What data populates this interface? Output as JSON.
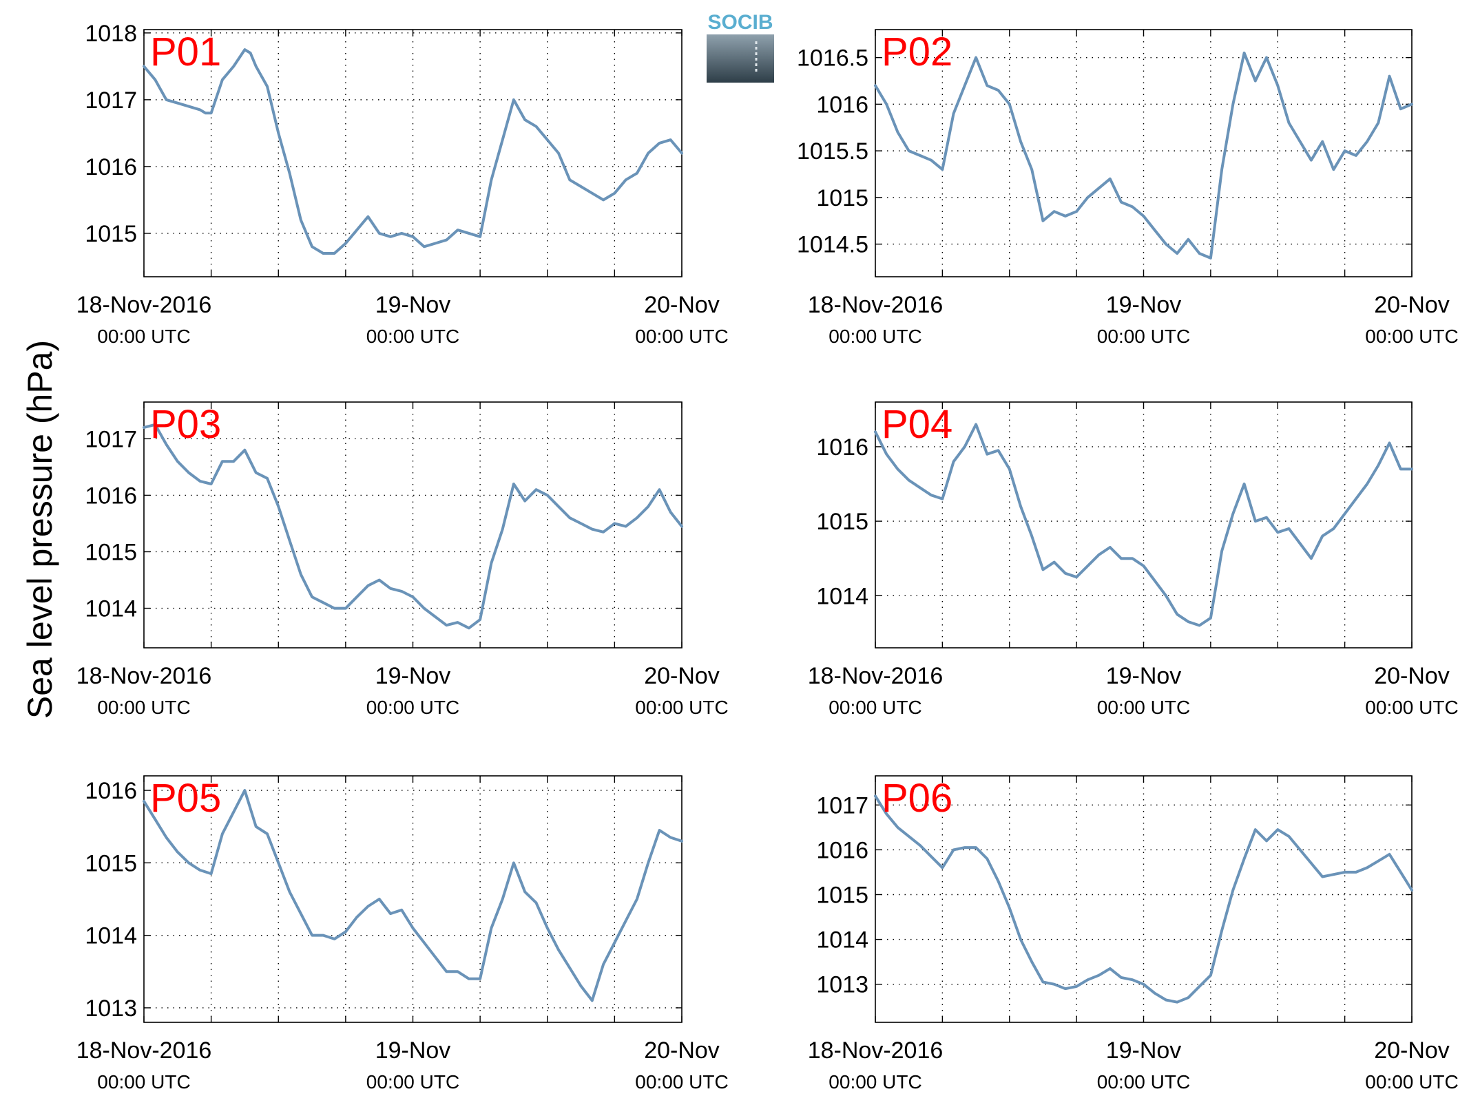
{
  "figure": {
    "ylabel": "Sea level pressure (hPa)",
    "logo_text": "SOCIB",
    "line_color": "#6a93b8",
    "panel_label_color": "#ff0000",
    "x_ticks": [
      {
        "label": "18-Nov-2016",
        "sub": "00:00 UTC",
        "hours": 0
      },
      {
        "label": "19-Nov",
        "sub": "00:00 UTC",
        "hours": 24
      },
      {
        "label": "20-Nov",
        "sub": "00:00 UTC",
        "hours": 48
      }
    ],
    "x_grid_hours": [
      0,
      6,
      12,
      18,
      24,
      30,
      36,
      42,
      48
    ]
  },
  "chart_data": [
    {
      "type": "line",
      "title": "P01",
      "xlabel": "",
      "ylabel": "Sea level pressure (hPa)",
      "x_unit": "hours since 18-Nov-2016 00:00 UTC",
      "xlim": [
        0,
        48
      ],
      "ylim": [
        1014.35,
        1018.05
      ],
      "yticks": [
        1015,
        1016,
        1017,
        1018
      ],
      "grid": true,
      "series": [
        {
          "x": [
            0,
            1,
            2,
            3,
            4,
            5,
            5.5,
            6,
            7,
            8,
            9,
            9.5,
            10,
            11,
            12,
            13,
            14,
            15,
            16,
            17,
            18,
            19,
            20,
            21,
            22,
            23,
            24,
            25,
            26,
            27,
            28,
            29,
            30,
            31,
            32,
            33,
            34,
            35,
            36,
            37,
            38,
            39,
            40,
            41,
            42,
            43,
            44,
            45,
            46,
            47,
            48
          ],
          "values": [
            1017.5,
            1017.3,
            1017.0,
            1016.95,
            1016.9,
            1016.85,
            1016.8,
            1016.8,
            1017.3,
            1017.5,
            1017.75,
            1017.7,
            1017.5,
            1017.2,
            1016.5,
            1015.9,
            1015.2,
            1014.8,
            1014.7,
            1014.7,
            1014.85,
            1015.05,
            1015.25,
            1015.0,
            1014.95,
            1015.0,
            1014.95,
            1014.8,
            1014.85,
            1014.9,
            1015.05,
            1015.0,
            1014.95,
            1015.8,
            1016.4,
            1017.0,
            1016.7,
            1016.6,
            1016.4,
            1016.2,
            1015.8,
            1015.7,
            1015.6,
            1015.5,
            1015.6,
            1015.8,
            1015.9,
            1016.2,
            1016.35,
            1016.4,
            1016.2
          ]
        }
      ]
    },
    {
      "type": "line",
      "title": "P02",
      "xlabel": "",
      "ylabel": "Sea level pressure (hPa)",
      "x_unit": "hours since 18-Nov-2016 00:00 UTC",
      "xlim": [
        0,
        48
      ],
      "ylim": [
        1014.15,
        1016.8
      ],
      "yticks": [
        1014.5,
        1015,
        1015.5,
        1016,
        1016.5
      ],
      "grid": true,
      "series": [
        {
          "x": [
            0,
            1,
            2,
            3,
            4,
            5,
            6,
            7,
            8,
            9,
            10,
            11,
            12,
            13,
            14,
            15,
            16,
            17,
            18,
            19,
            20,
            21,
            22,
            23,
            24,
            25,
            26,
            27,
            28,
            29,
            30,
            31,
            32,
            33,
            34,
            35,
            36,
            37,
            38,
            39,
            40,
            41,
            42,
            43,
            44,
            45,
            46,
            47,
            48
          ],
          "values": [
            1016.2,
            1016.0,
            1015.7,
            1015.5,
            1015.45,
            1015.4,
            1015.3,
            1015.9,
            1016.2,
            1016.5,
            1016.2,
            1016.15,
            1016.0,
            1015.6,
            1015.3,
            1014.75,
            1014.85,
            1014.8,
            1014.85,
            1015.0,
            1015.1,
            1015.2,
            1014.95,
            1014.9,
            1014.8,
            1014.65,
            1014.5,
            1014.4,
            1014.55,
            1014.4,
            1014.35,
            1015.3,
            1016.0,
            1016.55,
            1016.25,
            1016.5,
            1016.2,
            1015.8,
            1015.6,
            1015.4,
            1015.6,
            1015.3,
            1015.5,
            1015.45,
            1015.6,
            1015.8,
            1016.3,
            1015.95,
            1016.0
          ]
        }
      ]
    },
    {
      "type": "line",
      "title": "P03",
      "xlabel": "",
      "ylabel": "Sea level pressure (hPa)",
      "x_unit": "hours since 18-Nov-2016 00:00 UTC",
      "xlim": [
        0,
        48
      ],
      "ylim": [
        1013.3,
        1017.65
      ],
      "yticks": [
        1014,
        1015,
        1016,
        1017
      ],
      "grid": true,
      "series": [
        {
          "x": [
            0,
            1,
            2,
            3,
            4,
            5,
            6,
            7,
            8,
            9,
            10,
            11,
            12,
            13,
            14,
            15,
            16,
            17,
            18,
            19,
            20,
            21,
            22,
            23,
            24,
            25,
            26,
            27,
            28,
            29,
            30,
            31,
            32,
            33,
            34,
            35,
            36,
            37,
            38,
            39,
            40,
            41,
            42,
            43,
            44,
            45,
            46,
            47,
            48
          ],
          "values": [
            1017.2,
            1017.25,
            1016.9,
            1016.6,
            1016.4,
            1016.25,
            1016.2,
            1016.6,
            1016.6,
            1016.8,
            1016.4,
            1016.3,
            1015.8,
            1015.2,
            1014.6,
            1014.2,
            1014.1,
            1014.0,
            1014.0,
            1014.2,
            1014.4,
            1014.5,
            1014.35,
            1014.3,
            1014.2,
            1014.0,
            1013.85,
            1013.7,
            1013.75,
            1013.65,
            1013.8,
            1014.8,
            1015.4,
            1016.2,
            1015.9,
            1016.1,
            1016.0,
            1015.8,
            1015.6,
            1015.5,
            1015.4,
            1015.35,
            1015.5,
            1015.45,
            1015.6,
            1015.8,
            1016.1,
            1015.7,
            1015.45
          ]
        }
      ]
    },
    {
      "type": "line",
      "title": "P04",
      "xlabel": "",
      "ylabel": "Sea level pressure (hPa)",
      "x_unit": "hours since 18-Nov-2016 00:00 UTC",
      "xlim": [
        0,
        48
      ],
      "ylim": [
        1013.3,
        1016.6
      ],
      "yticks": [
        1014,
        1015,
        1016
      ],
      "grid": true,
      "series": [
        {
          "x": [
            0,
            1,
            2,
            3,
            4,
            5,
            6,
            7,
            8,
            9,
            10,
            11,
            12,
            13,
            14,
            15,
            16,
            17,
            18,
            19,
            20,
            21,
            22,
            23,
            24,
            25,
            26,
            27,
            28,
            29,
            30,
            31,
            32,
            33,
            34,
            35,
            36,
            37,
            38,
            39,
            40,
            41,
            42,
            43,
            44,
            45,
            46,
            47,
            48
          ],
          "values": [
            1016.2,
            1015.9,
            1015.7,
            1015.55,
            1015.45,
            1015.35,
            1015.3,
            1015.8,
            1016.0,
            1016.3,
            1015.9,
            1015.95,
            1015.7,
            1015.2,
            1014.8,
            1014.35,
            1014.45,
            1014.3,
            1014.25,
            1014.4,
            1014.55,
            1014.65,
            1014.5,
            1014.5,
            1014.4,
            1014.2,
            1014.0,
            1013.75,
            1013.65,
            1013.6,
            1013.7,
            1014.6,
            1015.1,
            1015.5,
            1015.0,
            1015.05,
            1014.85,
            1014.9,
            1014.7,
            1014.5,
            1014.8,
            1014.9,
            1015.1,
            1015.3,
            1015.5,
            1015.75,
            1016.05,
            1015.7,
            1015.7
          ]
        }
      ]
    },
    {
      "type": "line",
      "title": "P05",
      "xlabel": "",
      "ylabel": "Sea level pressure (hPa)",
      "x_unit": "hours since 18-Nov-2016 00:00 UTC",
      "xlim": [
        0,
        48
      ],
      "ylim": [
        1012.8,
        1016.2
      ],
      "yticks": [
        1013,
        1014,
        1015,
        1016
      ],
      "grid": true,
      "series": [
        {
          "x": [
            0,
            1,
            2,
            3,
            4,
            5,
            6,
            7,
            8,
            9,
            10,
            11,
            12,
            13,
            14,
            15,
            16,
            17,
            18,
            19,
            20,
            21,
            22,
            23,
            24,
            25,
            26,
            27,
            28,
            29,
            30,
            31,
            32,
            33,
            34,
            35,
            36,
            37,
            38,
            39,
            40,
            41,
            42,
            43,
            44,
            45,
            46,
            47,
            48
          ],
          "values": [
            1015.85,
            1015.6,
            1015.35,
            1015.15,
            1015.0,
            1014.9,
            1014.85,
            1015.4,
            1015.7,
            1016.0,
            1015.5,
            1015.4,
            1015.0,
            1014.6,
            1014.3,
            1014.0,
            1014.0,
            1013.95,
            1014.05,
            1014.25,
            1014.4,
            1014.5,
            1014.3,
            1014.35,
            1014.1,
            1013.9,
            1013.7,
            1013.5,
            1013.5,
            1013.4,
            1013.4,
            1014.1,
            1014.5,
            1015.0,
            1014.6,
            1014.45,
            1014.1,
            1013.8,
            1013.55,
            1013.3,
            1013.1,
            1013.6,
            1013.9,
            1014.2,
            1014.5,
            1015.0,
            1015.45,
            1015.35,
            1015.3
          ]
        }
      ]
    },
    {
      "type": "line",
      "title": "P06",
      "xlabel": "",
      "ylabel": "Sea level pressure (hPa)",
      "x_unit": "hours since 18-Nov-2016 00:00 UTC",
      "xlim": [
        0,
        48
      ],
      "ylim": [
        1012.15,
        1017.65
      ],
      "yticks": [
        1013,
        1014,
        1015,
        1016,
        1017
      ],
      "grid": true,
      "series": [
        {
          "x": [
            0,
            1,
            2,
            3,
            4,
            5,
            6,
            7,
            8,
            9,
            10,
            11,
            12,
            13,
            14,
            15,
            16,
            17,
            18,
            19,
            20,
            21,
            22,
            23,
            24,
            25,
            26,
            27,
            28,
            29,
            30,
            31,
            32,
            33,
            34,
            35,
            36,
            37,
            38,
            39,
            40,
            41,
            42,
            43,
            44,
            45,
            46,
            47,
            48
          ],
          "values": [
            1017.2,
            1016.8,
            1016.5,
            1016.3,
            1016.1,
            1015.85,
            1015.6,
            1016.0,
            1016.05,
            1016.05,
            1015.8,
            1015.3,
            1014.7,
            1014.0,
            1013.5,
            1013.05,
            1013.0,
            1012.9,
            1012.95,
            1013.1,
            1013.2,
            1013.35,
            1013.15,
            1013.1,
            1013.0,
            1012.8,
            1012.65,
            1012.6,
            1012.7,
            1012.95,
            1013.2,
            1014.2,
            1015.1,
            1015.8,
            1016.45,
            1016.2,
            1016.45,
            1016.3,
            1016.0,
            1015.7,
            1015.4,
            1015.45,
            1015.5,
            1015.5,
            1015.6,
            1015.75,
            1015.9,
            1015.5,
            1015.1
          ]
        }
      ]
    }
  ]
}
